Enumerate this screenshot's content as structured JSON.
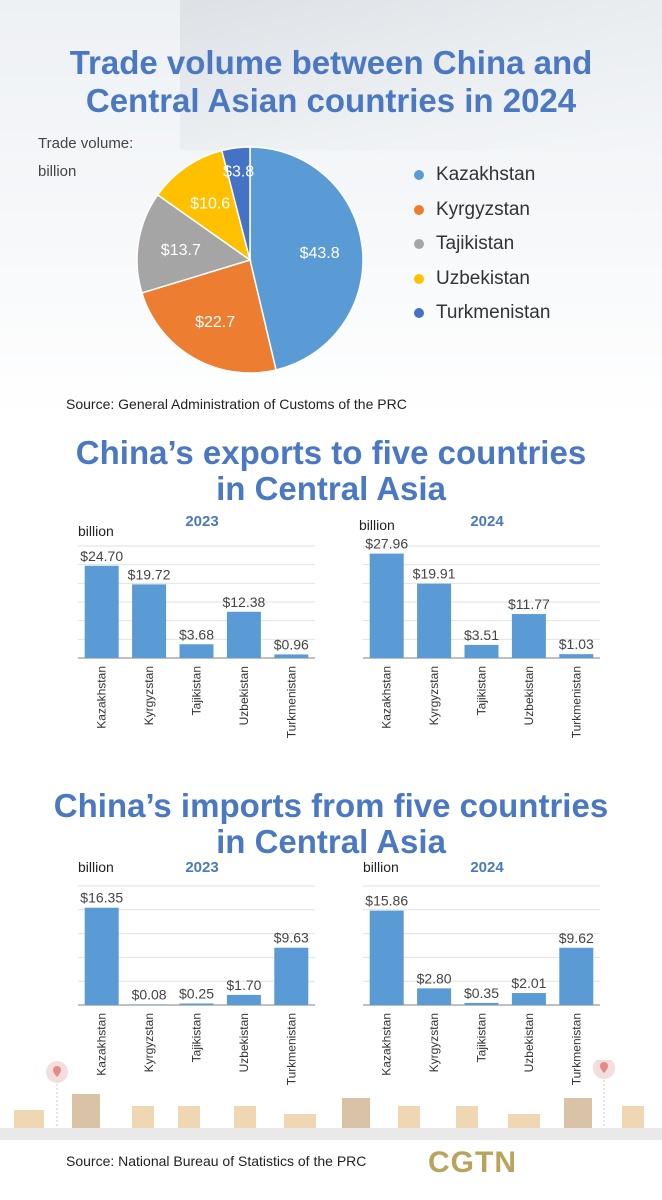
{
  "section1": {
    "title_line1": "Trade volume between China and",
    "title_line2": "Central Asian countries in 2024",
    "unit_line1": "Trade volume:",
    "unit_line2": "billion",
    "source": "Source: General Administration of Customs of the PRC"
  },
  "section2": {
    "title_line1": "China’s exports to five countries",
    "title_line2": "in Central Asia"
  },
  "section3": {
    "title_line1": "China’s imports from five countries",
    "title_line2": "in Central Asia"
  },
  "footer": {
    "source": "Source: National Bureau of Statistics of the PRC",
    "logo": "CGTN"
  },
  "colors": {
    "title": "#4a78c2",
    "bar": "#5b9bd5",
    "Kazakhstan": "#5b9bd5",
    "Kyrgyzstan": "#ed7d31",
    "Tajikistan": "#a5a5a5",
    "Uzbekistan": "#ffc000",
    "Turkmenistan": "#4472c4"
  },
  "chart_data": [
    {
      "id": "pie2024",
      "type": "pie",
      "title": "Trade volume between China and Central Asian countries in 2024",
      "unit": "billion",
      "labels": [
        "Kazakhstan",
        "Kyrgyzstan",
        "Tajikistan",
        "Uzbekistan",
        "Turkmenistan"
      ],
      "values": [
        43.8,
        22.7,
        13.7,
        10.6,
        3.8
      ],
      "data_labels": [
        "$43.8",
        "$22.7",
        "$13.7",
        "$10.6",
        "$3.8"
      ],
      "legend": "right"
    },
    {
      "id": "exp2023",
      "type": "bar",
      "title": "2023",
      "ylabel": "billion",
      "categories": [
        "Kazakhstan",
        "Kyrgyzstan",
        "Tajikistan",
        "Uzbekistan",
        "Turkmenistan"
      ],
      "values": [
        24.7,
        19.72,
        3.68,
        12.38,
        0.96
      ],
      "data_labels": [
        "$24.70",
        "$19.72",
        "$3.68",
        "$12.38",
        "$0.96"
      ],
      "ylim": [
        0,
        30
      ]
    },
    {
      "id": "exp2024",
      "type": "bar",
      "title": "2024",
      "ylabel": "billion",
      "categories": [
        "Kazakhstan",
        "Kyrgyzstan",
        "Tajikistan",
        "Uzbekistan",
        "Turkmenistan"
      ],
      "values": [
        27.96,
        19.91,
        3.51,
        11.77,
        1.03
      ],
      "data_labels": [
        "$27.96",
        "$19.91",
        "$3.51",
        "$11.77",
        "$1.03"
      ],
      "ylim": [
        0,
        30
      ]
    },
    {
      "id": "imp2023",
      "type": "bar",
      "title": "2023",
      "ylabel": "billion",
      "categories": [
        "Kazakhstan",
        "Kyrgyzstan",
        "Tajikistan",
        "Uzbekistan",
        "Turkmenistan"
      ],
      "values": [
        16.35,
        0.08,
        0.25,
        1.7,
        9.63
      ],
      "data_labels": [
        "$16.35",
        "$0.08",
        "$0.25",
        "$1.70",
        "$9.63"
      ],
      "ylim": [
        0,
        20
      ]
    },
    {
      "id": "imp2024",
      "type": "bar",
      "title": "2024",
      "ylabel": "billion",
      "categories": [
        "Kazakhstan",
        "Kyrgyzstan",
        "Tajikistan",
        "Uzbekistan",
        "Turkmenistan"
      ],
      "values": [
        15.86,
        2.8,
        0.35,
        2.01,
        9.62
      ],
      "data_labels": [
        "$15.86",
        "$2.80",
        "$0.35",
        "$2.01",
        "$9.62"
      ],
      "ylim": [
        0,
        20
      ]
    }
  ]
}
